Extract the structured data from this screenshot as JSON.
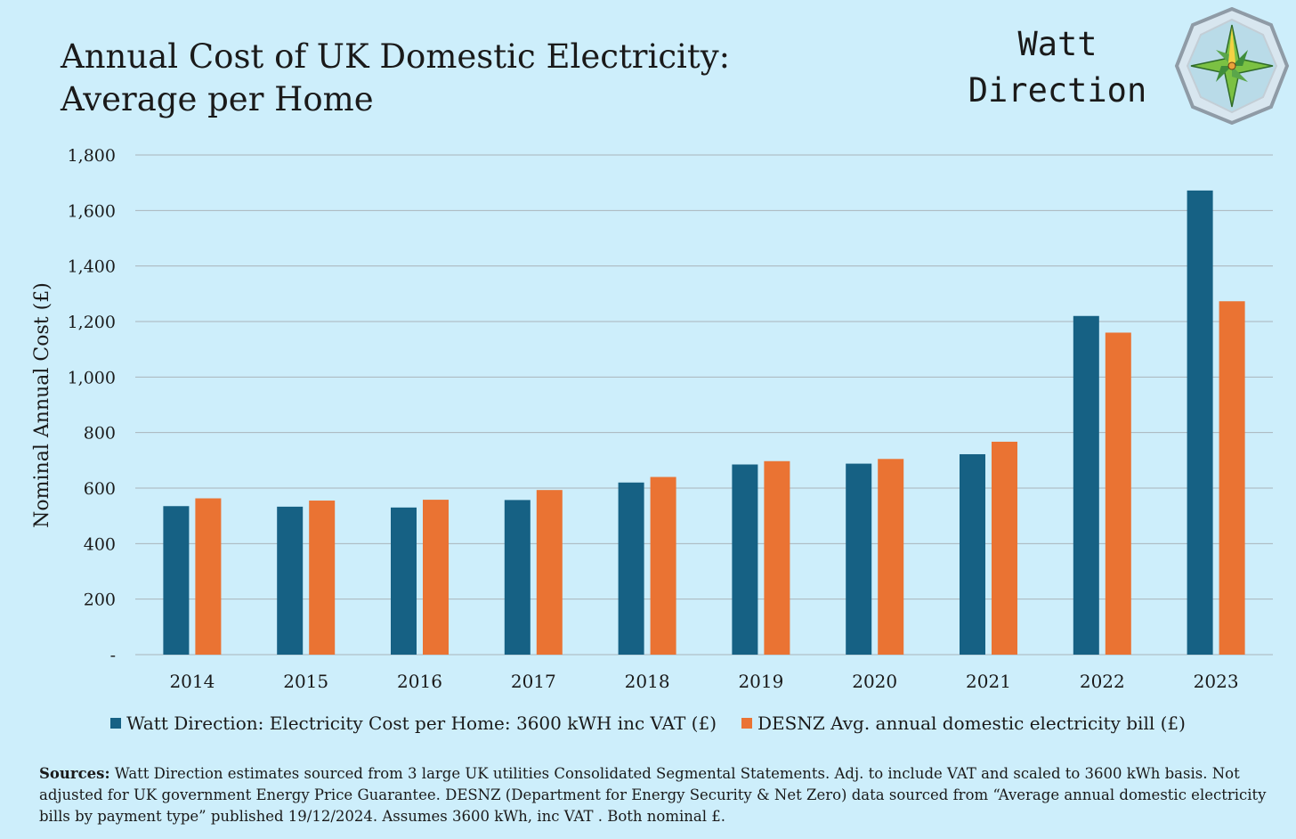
{
  "title_lines": [
    "Annual Cost of UK Domestic Electricity:",
    "Average per Home"
  ],
  "brand": {
    "line1": "Watt",
    "line2": "Direction",
    "logo": "compass-rose-logo"
  },
  "colors": {
    "background": "#cdeefb",
    "series1": "#166184",
    "series2": "#ea7333",
    "gridline": "#a9b4bb"
  },
  "chart_data": {
    "type": "bar",
    "title": "Annual Cost of UK Domestic Electricity: Average per Home",
    "xlabel": "",
    "ylabel": "Nominal Annual Cost (£)",
    "ylim": [
      0,
      1800
    ],
    "yticks": [
      0,
      200,
      400,
      600,
      800,
      1000,
      1200,
      1400,
      1600,
      1800
    ],
    "ytick_labels": [
      "-",
      "200",
      "400",
      "600",
      "800",
      "1,000",
      "1,200",
      "1,400",
      "1,600",
      "1,800"
    ],
    "grid": true,
    "legend_position": "bottom",
    "categories": [
      "2014",
      "2015",
      "2016",
      "2017",
      "2018",
      "2019",
      "2020",
      "2021",
      "2022",
      "2023"
    ],
    "series": [
      {
        "name": "Watt Direction: Electricity Cost per Home: 3600 kWH inc VAT (£)",
        "values": [
          535,
          533,
          530,
          557,
          620,
          685,
          688,
          722,
          1220,
          1672
        ]
      },
      {
        "name": "DESNZ Avg. annual domestic electricity bill (£)",
        "values": [
          563,
          555,
          558,
          593,
          640,
          697,
          705,
          767,
          1160,
          1273
        ]
      }
    ]
  },
  "sources": {
    "label": "Sources:",
    "text": " Watt Direction estimates sourced from 3 large UK utilities Consolidated Segmental Statements. Adj. to include VAT and scaled to 3600 kWh basis. Not adjusted for UK government Energy Price Guarantee.  DESNZ (Department for Energy Security & Net Zero) data sourced from  “Average annual domestic electricity bills by payment type” published 19/12/2024. Assumes 3600 kWh, inc VAT . Both nominal £."
  }
}
